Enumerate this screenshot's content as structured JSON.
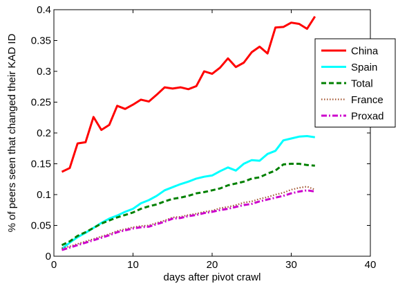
{
  "chart_data": {
    "type": "line",
    "title": "",
    "xlabel": "days after pivot crawl",
    "ylabel": "% of peers seen that changed their KAD ID",
    "xlim": [
      0,
      40
    ],
    "ylim": [
      0,
      0.4
    ],
    "xticks": [
      0,
      10,
      20,
      30,
      40
    ],
    "yticks": [
      0,
      0.05,
      0.1,
      0.15,
      0.2,
      0.25,
      0.3,
      0.35,
      0.4
    ],
    "xtick_labels": [
      "0",
      "10",
      "20",
      "30",
      "40"
    ],
    "ytick_labels": [
      "0",
      "0.05",
      "0.1",
      "0.15",
      "0.2",
      "0.25",
      "0.3",
      "0.35",
      "0.4"
    ],
    "grid": false,
    "legend_position": "top-right",
    "x": [
      1,
      2,
      3,
      4,
      5,
      6,
      7,
      8,
      9,
      10,
      11,
      12,
      13,
      14,
      15,
      16,
      17,
      18,
      19,
      20,
      21,
      22,
      23,
      24,
      25,
      26,
      27,
      28,
      29,
      30,
      31,
      32,
      33
    ],
    "series": [
      {
        "name": "China",
        "color": "#ff0000",
        "dash": "solid",
        "values": [
          0.137,
          0.143,
          0.183,
          0.185,
          0.226,
          0.205,
          0.213,
          0.244,
          0.239,
          0.246,
          0.254,
          0.251,
          0.262,
          0.274,
          0.272,
          0.274,
          0.271,
          0.276,
          0.3,
          0.296,
          0.306,
          0.321,
          0.307,
          0.314,
          0.331,
          0.34,
          0.329,
          0.371,
          0.372,
          0.379,
          0.377,
          0.369,
          0.389
        ]
      },
      {
        "name": "Spain",
        "color": "#00ffff",
        "dash": "solid",
        "values": [
          0.012,
          0.022,
          0.031,
          0.038,
          0.046,
          0.054,
          0.061,
          0.066,
          0.072,
          0.077,
          0.086,
          0.091,
          0.098,
          0.107,
          0.112,
          0.117,
          0.121,
          0.126,
          0.129,
          0.131,
          0.138,
          0.144,
          0.139,
          0.15,
          0.156,
          0.155,
          0.166,
          0.171,
          0.188,
          0.191,
          0.194,
          0.195,
          0.193
        ]
      },
      {
        "name": "Total",
        "color": "#008000",
        "dash": "dashed",
        "values": [
          0.018,
          0.024,
          0.033,
          0.039,
          0.046,
          0.053,
          0.058,
          0.063,
          0.067,
          0.071,
          0.077,
          0.081,
          0.084,
          0.089,
          0.093,
          0.095,
          0.098,
          0.102,
          0.104,
          0.107,
          0.11,
          0.115,
          0.118,
          0.121,
          0.126,
          0.128,
          0.134,
          0.139,
          0.149,
          0.15,
          0.15,
          0.148,
          0.147
        ]
      },
      {
        "name": "France",
        "color": "#a0522d",
        "dash": "dotted",
        "values": [
          0.013,
          0.016,
          0.02,
          0.024,
          0.028,
          0.032,
          0.036,
          0.041,
          0.044,
          0.047,
          0.049,
          0.05,
          0.054,
          0.058,
          0.063,
          0.064,
          0.067,
          0.069,
          0.072,
          0.074,
          0.078,
          0.08,
          0.083,
          0.087,
          0.089,
          0.093,
          0.096,
          0.1,
          0.103,
          0.108,
          0.111,
          0.113,
          0.108
        ]
      },
      {
        "name": "Proxad",
        "color": "#cc00cc",
        "dash": "dashdot",
        "values": [
          0.01,
          0.014,
          0.018,
          0.022,
          0.026,
          0.03,
          0.034,
          0.039,
          0.042,
          0.045,
          0.047,
          0.048,
          0.052,
          0.056,
          0.061,
          0.062,
          0.065,
          0.067,
          0.07,
          0.072,
          0.075,
          0.077,
          0.08,
          0.083,
          0.085,
          0.089,
          0.092,
          0.095,
          0.098,
          0.102,
          0.105,
          0.107,
          0.105
        ]
      }
    ]
  }
}
